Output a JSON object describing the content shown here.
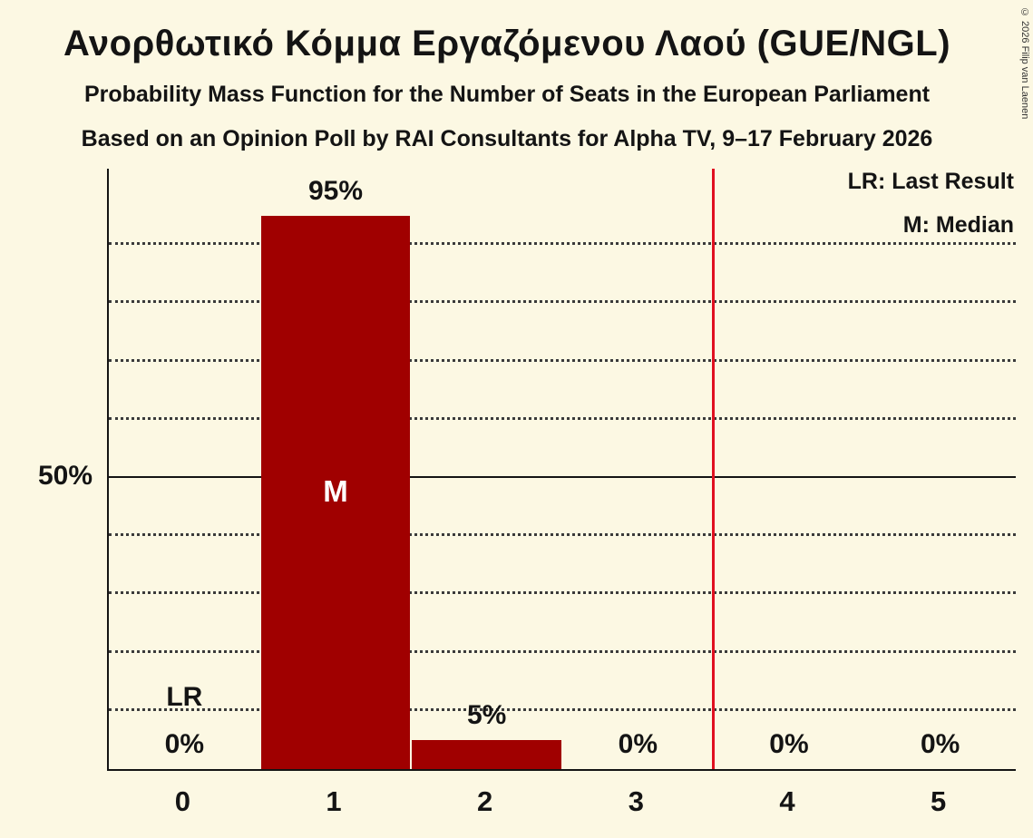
{
  "title": "Ανορθωτικό Κόμμα Εργαζόμενου Λαού (GUE/NGL)",
  "subtitle1": "Probability Mass Function for the Number of Seats in the European Parliament",
  "subtitle2": "Based on an Opinion Poll by RAI Consultants for Alpha TV, 9–17 February 2026",
  "copyright": "© 2026 Filip van Laenen",
  "legend": {
    "last_result": "LR: Last Result",
    "median": "M: Median"
  },
  "colors": {
    "background": "#fcf8e3",
    "bar": "#a00000",
    "last_result_line": "#e01020",
    "text": "#141414"
  },
  "y_axis_label": "50%",
  "chart_data": {
    "type": "bar",
    "title": "Ανορθωτικό Κόμμα Εργαζόμενου Λαού (GUE/NGL)",
    "categories": [
      "0",
      "1",
      "2",
      "3",
      "4",
      "5"
    ],
    "values": [
      0,
      95,
      5,
      0,
      0,
      0
    ],
    "labels": [
      "0%",
      "95%",
      "5%",
      "0%",
      "0%",
      "0%"
    ],
    "median_index": 1,
    "median_marker": "M",
    "last_result_index": 0,
    "last_result_marker": "LR",
    "vline_x": 3.5,
    "ylim": [
      0,
      100
    ],
    "solid_line_percent": 50,
    "dotted_gridlines_percent": [
      10,
      20,
      30,
      40,
      60,
      70,
      80,
      90
    ],
    "xlabel": "",
    "ylabel": "50%"
  }
}
